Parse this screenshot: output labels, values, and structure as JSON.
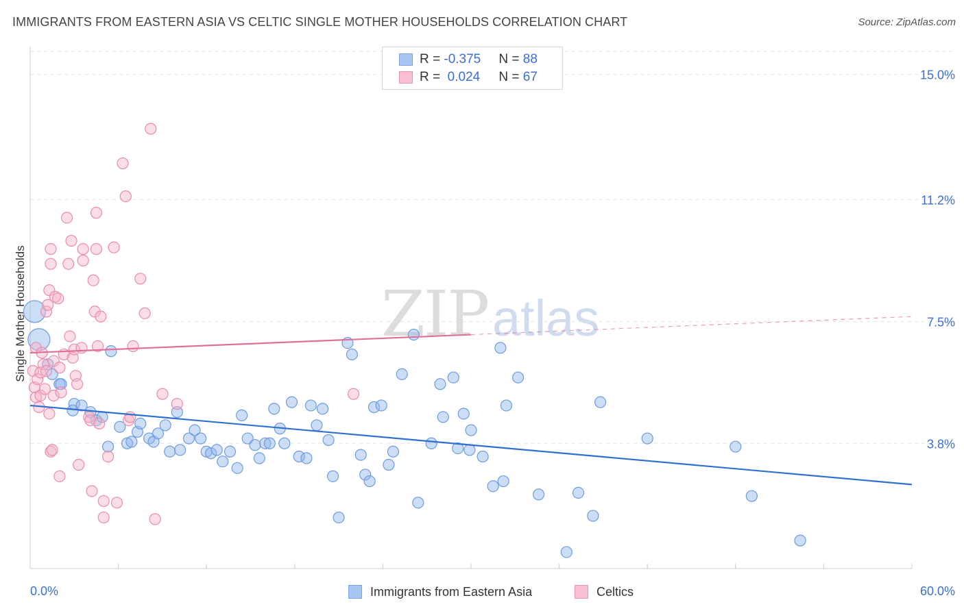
{
  "title": "IMMIGRANTS FROM EASTERN ASIA VS CELTIC SINGLE MOTHER HOUSEHOLDS CORRELATION CHART",
  "source": "Source: ZipAtlas.com",
  "watermark": {
    "zip": "ZIP",
    "atlas": "atlas"
  },
  "legend_top": [
    {
      "r_label": "R = ",
      "r_value": "-0.375",
      "n_label": "N = ",
      "n_value": "88",
      "color": "#a9c6f2",
      "border": "#7ba3e6"
    },
    {
      "r_label": "R = ",
      "r_value": " 0.024",
      "n_label": "N = ",
      "n_value": "67",
      "color": "#f8c0d2",
      "border": "#eb8fb0"
    }
  ],
  "chart_data": {
    "type": "scatter",
    "title": "IMMIGRANTS FROM EASTERN ASIA VS CELTIC SINGLE MOTHER HOUSEHOLDS CORRELATION CHART",
    "xlabel": "",
    "ylabel": "Single Mother Households",
    "xlim": [
      0,
      60
    ],
    "ylim": [
      0,
      15.7
    ],
    "x_tick_labels": [
      "0.0%",
      "60.0%"
    ],
    "y_ticks": [
      3.8,
      7.5,
      11.2,
      15.0
    ],
    "y_tick_labels": [
      "3.8%",
      "7.5%",
      "11.2%",
      "15.0%"
    ],
    "grid": true,
    "legend_position": "bottom",
    "series": [
      {
        "name": "Immigrants from Eastern Asia",
        "color": "#8fb4ec",
        "edge": "#6d9be0",
        "line_color": "#2e6fd0",
        "trend": {
          "x": [
            0,
            60
          ],
          "y": [
            4.95,
            2.55
          ]
        },
        "points": [
          [
            0.3,
            7.8
          ],
          [
            0.6,
            6.95
          ],
          [
            1.2,
            6.2
          ],
          [
            1.5,
            5.9
          ],
          [
            2.0,
            5.6
          ],
          [
            2.1,
            5.6
          ],
          [
            3.0,
            5.0
          ],
          [
            2.9,
            4.8
          ],
          [
            3.5,
            4.95
          ],
          [
            4.1,
            4.75
          ],
          [
            4.5,
            4.5
          ],
          [
            4.9,
            4.6
          ],
          [
            5.5,
            6.6
          ],
          [
            5.3,
            3.7
          ],
          [
            6.1,
            4.3
          ],
          [
            6.6,
            3.8
          ],
          [
            6.9,
            3.85
          ],
          [
            7.3,
            4.15
          ],
          [
            7.5,
            4.4
          ],
          [
            8.1,
            3.95
          ],
          [
            8.4,
            3.85
          ],
          [
            8.7,
            4.1
          ],
          [
            9.2,
            4.35
          ],
          [
            9.5,
            3.55
          ],
          [
            10.0,
            4.75
          ],
          [
            10.2,
            3.6
          ],
          [
            10.8,
            3.95
          ],
          [
            11.2,
            4.2
          ],
          [
            11.6,
            3.95
          ],
          [
            12.0,
            3.55
          ],
          [
            12.3,
            3.5
          ],
          [
            12.7,
            3.6
          ],
          [
            13.1,
            3.25
          ],
          [
            13.6,
            3.55
          ],
          [
            14.1,
            3.05
          ],
          [
            14.4,
            4.65
          ],
          [
            14.8,
            3.95
          ],
          [
            15.3,
            3.75
          ],
          [
            15.6,
            3.35
          ],
          [
            16.0,
            3.8
          ],
          [
            16.3,
            3.8
          ],
          [
            16.6,
            4.85
          ],
          [
            17.0,
            4.25
          ],
          [
            17.3,
            3.8
          ],
          [
            17.8,
            5.05
          ],
          [
            18.3,
            3.4
          ],
          [
            18.8,
            3.35
          ],
          [
            19.1,
            4.95
          ],
          [
            19.5,
            4.35
          ],
          [
            19.9,
            4.85
          ],
          [
            20.3,
            3.9
          ],
          [
            20.6,
            2.8
          ],
          [
            21.0,
            1.55
          ],
          [
            21.6,
            6.85
          ],
          [
            21.9,
            6.5
          ],
          [
            22.5,
            3.45
          ],
          [
            22.8,
            2.85
          ],
          [
            23.1,
            2.65
          ],
          [
            23.4,
            4.9
          ],
          [
            23.9,
            4.95
          ],
          [
            24.4,
            3.15
          ],
          [
            24.7,
            3.55
          ],
          [
            25.3,
            5.9
          ],
          [
            26.1,
            7.1
          ],
          [
            26.4,
            2.0
          ],
          [
            27.3,
            3.8
          ],
          [
            27.9,
            5.6
          ],
          [
            28.1,
            4.6
          ],
          [
            28.8,
            5.8
          ],
          [
            29.1,
            3.65
          ],
          [
            29.5,
            4.7
          ],
          [
            29.9,
            3.6
          ],
          [
            30.0,
            4.2
          ],
          [
            30.8,
            3.4
          ],
          [
            31.5,
            2.5
          ],
          [
            32.0,
            6.7
          ],
          [
            32.2,
            2.65
          ],
          [
            32.4,
            4.95
          ],
          [
            33.2,
            5.8
          ],
          [
            34.6,
            2.25
          ],
          [
            36.5,
            0.5
          ],
          [
            37.3,
            2.3
          ],
          [
            38.3,
            1.6
          ],
          [
            38.8,
            5.05
          ],
          [
            42.0,
            3.95
          ],
          [
            48.0,
            3.7
          ],
          [
            49.1,
            2.2
          ],
          [
            52.4,
            0.85
          ]
        ],
        "sizes_large": [
          0,
          1
        ]
      },
      {
        "name": "Celtics",
        "color": "#f5b3c8",
        "edge": "#e98cad",
        "line_color": "#e0709a",
        "trend": {
          "x": [
            0,
            30
          ],
          "y": [
            6.55,
            7.1
          ]
        },
        "trend_dashed": {
          "x": [
            30,
            60
          ],
          "y": [
            7.1,
            7.65
          ]
        },
        "points": [
          [
            0.2,
            6.0
          ],
          [
            0.3,
            5.5
          ],
          [
            0.4,
            6.7
          ],
          [
            0.4,
            5.2
          ],
          [
            0.5,
            5.75
          ],
          [
            0.6,
            4.9
          ],
          [
            0.7,
            5.95
          ],
          [
            0.7,
            5.25
          ],
          [
            0.8,
            6.55
          ],
          [
            0.9,
            6.2
          ],
          [
            1.0,
            5.45
          ],
          [
            1.1,
            7.8
          ],
          [
            1.1,
            6.0
          ],
          [
            1.2,
            8.0
          ],
          [
            1.3,
            8.45
          ],
          [
            1.3,
            4.7
          ],
          [
            1.4,
            9.25
          ],
          [
            1.4,
            9.7
          ],
          [
            1.4,
            3.55
          ],
          [
            1.5,
            3.6
          ],
          [
            1.6,
            5.25
          ],
          [
            1.6,
            6.3
          ],
          [
            1.7,
            8.25
          ],
          [
            1.9,
            8.2
          ],
          [
            2.0,
            2.8
          ],
          [
            2.0,
            6.1
          ],
          [
            2.1,
            5.35
          ],
          [
            2.3,
            6.5
          ],
          [
            2.5,
            10.65
          ],
          [
            2.6,
            9.25
          ],
          [
            2.7,
            7.05
          ],
          [
            2.8,
            9.95
          ],
          [
            2.9,
            6.4
          ],
          [
            3.0,
            6.65
          ],
          [
            3.1,
            5.85
          ],
          [
            3.2,
            5.6
          ],
          [
            3.3,
            3.15
          ],
          [
            3.5,
            6.7
          ],
          [
            3.6,
            9.35
          ],
          [
            3.6,
            9.7
          ],
          [
            4.0,
            4.6
          ],
          [
            4.1,
            4.5
          ],
          [
            4.2,
            2.35
          ],
          [
            4.3,
            8.75
          ],
          [
            4.4,
            7.8
          ],
          [
            4.5,
            10.8
          ],
          [
            4.5,
            9.7
          ],
          [
            4.6,
            6.75
          ],
          [
            4.7,
            4.4
          ],
          [
            4.8,
            7.65
          ],
          [
            5.0,
            2.05
          ],
          [
            5.0,
            1.55
          ],
          [
            5.3,
            3.4
          ],
          [
            5.7,
            9.75
          ],
          [
            5.9,
            2.0
          ],
          [
            6.3,
            12.3
          ],
          [
            6.5,
            11.3
          ],
          [
            6.7,
            4.5
          ],
          [
            6.8,
            4.6
          ],
          [
            7.0,
            6.75
          ],
          [
            7.5,
            8.8
          ],
          [
            7.8,
            7.75
          ],
          [
            8.2,
            13.35
          ],
          [
            8.5,
            1.5
          ],
          [
            9.0,
            5.3
          ],
          [
            10.0,
            5.0
          ],
          [
            22.0,
            5.3
          ]
        ]
      }
    ]
  },
  "bottom_legend": [
    {
      "label": "Immigrants from Eastern Asia",
      "color": "#a9c6f2",
      "border": "#7ba3e6"
    },
    {
      "label": "Celtics",
      "color": "#f8c0d2",
      "border": "#eb8fb0"
    }
  ]
}
